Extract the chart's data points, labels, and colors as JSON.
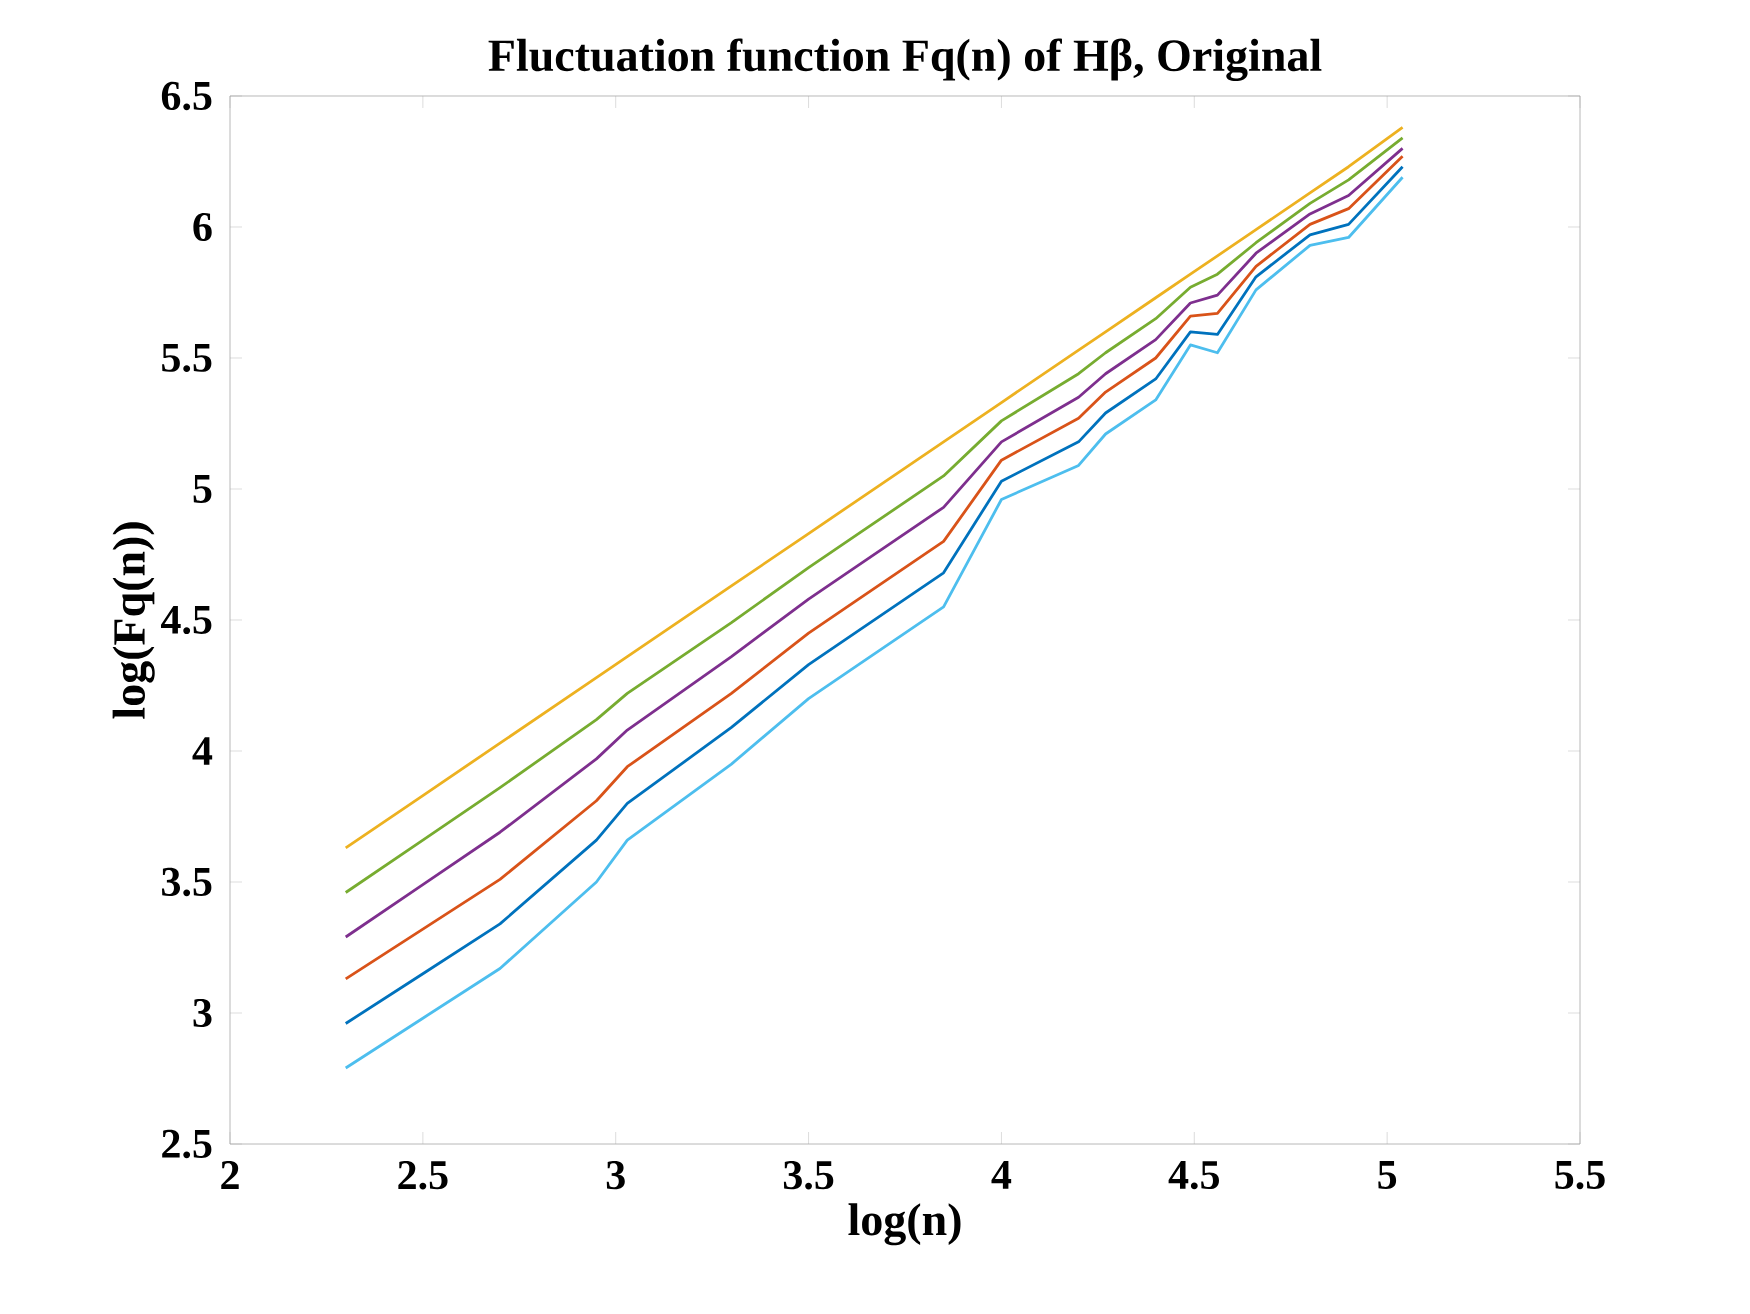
{
  "chart_data": {
    "type": "line",
    "title": "Fluctuation function Fq(n) of Hβ, Original",
    "xlabel": "log(n)",
    "ylabel": "log(Fq(n))",
    "x": [
      2.3,
      2.5,
      2.7,
      2.95,
      3.03,
      3.3,
      3.5,
      3.62,
      3.85,
      4.0,
      4.2,
      4.27,
      4.4,
      4.49,
      4.56,
      4.66,
      4.8,
      4.9,
      5.04
    ],
    "series": [
      {
        "color": "#4dbeee",
        "values": [
          2.79,
          2.98,
          3.17,
          3.5,
          3.66,
          3.95,
          4.2,
          4.32,
          4.55,
          4.96,
          5.09,
          5.21,
          5.34,
          5.55,
          5.52,
          5.76,
          5.93,
          5.96,
          6.19
        ]
      },
      {
        "color": "#0072bd",
        "values": [
          2.96,
          3.15,
          3.34,
          3.66,
          3.8,
          4.09,
          4.33,
          4.45,
          4.68,
          5.03,
          5.18,
          5.29,
          5.42,
          5.6,
          5.59,
          5.81,
          5.97,
          6.01,
          6.23
        ]
      },
      {
        "color": "#d95319",
        "values": [
          3.13,
          3.32,
          3.51,
          3.81,
          3.94,
          4.22,
          4.45,
          4.57,
          4.8,
          5.11,
          5.27,
          5.37,
          5.5,
          5.66,
          5.67,
          5.85,
          6.01,
          6.07,
          6.27
        ]
      },
      {
        "color": "#7e2f8e",
        "values": [
          3.29,
          3.49,
          3.69,
          3.97,
          4.08,
          4.36,
          4.58,
          4.7,
          4.93,
          5.18,
          5.35,
          5.44,
          5.57,
          5.71,
          5.74,
          5.9,
          6.05,
          6.12,
          6.3
        ]
      },
      {
        "color": "#77ac30",
        "values": [
          3.46,
          3.66,
          3.86,
          4.12,
          4.22,
          4.49,
          4.7,
          4.82,
          5.05,
          5.26,
          5.44,
          5.52,
          5.65,
          5.77,
          5.82,
          5.94,
          6.09,
          6.18,
          6.34
        ]
      },
      {
        "color": "#edb120",
        "values": [
          3.63,
          3.83,
          4.03,
          4.28,
          4.36,
          4.63,
          4.83,
          4.95,
          5.18,
          5.33,
          5.53,
          5.6,
          5.73,
          5.82,
          5.89,
          5.99,
          6.13,
          6.23,
          6.38
        ]
      }
    ],
    "xlim": [
      2,
      5.5
    ],
    "xticks": [
      2,
      2.5,
      3,
      3.5,
      4,
      4.5,
      5,
      5.5
    ],
    "ylim": [
      2.5,
      6.5
    ],
    "yticks": [
      2.5,
      3,
      3.5,
      4,
      4.5,
      5,
      5.5,
      6,
      6.5
    ],
    "marker": "none",
    "line_style": "solid"
  }
}
